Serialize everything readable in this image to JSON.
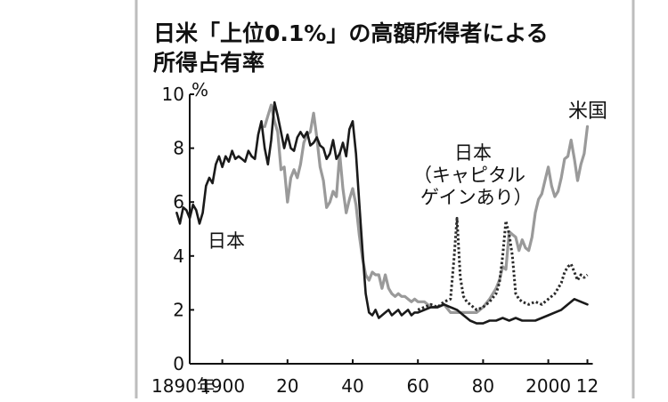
{
  "chart_data": {
    "type": "line",
    "title_line1": "日米「上位0.1%」の高額所得者による",
    "title_line2": "所得占有率",
    "y_unit": "%",
    "ylim": [
      0,
      10
    ],
    "xlim": [
      1890,
      2012
    ],
    "y_ticks": [
      {
        "value": 0,
        "label": "0"
      },
      {
        "value": 2,
        "label": "2"
      },
      {
        "value": 4,
        "label": "4"
      },
      {
        "value": 6,
        "label": "6"
      },
      {
        "value": 8,
        "label": "8"
      },
      {
        "value": 10,
        "label": "10"
      }
    ],
    "x_ticks": [
      {
        "value": 1890,
        "label": "1890年"
      },
      {
        "value": 1900,
        "label": "1900"
      },
      {
        "value": 1920,
        "label": "20"
      },
      {
        "value": 1940,
        "label": "40"
      },
      {
        "value": 1960,
        "label": "60"
      },
      {
        "value": 1980,
        "label": "80"
      },
      {
        "value": 2000,
        "label": "2000"
      },
      {
        "value": 2012,
        "label": "12"
      }
    ],
    "annotations": {
      "japan": "日本",
      "japan_cg_line1": "日本",
      "japan_cg_line2": "（キャピタル",
      "japan_cg_line3": "ゲインあり）",
      "us": "米国"
    },
    "series": [
      {
        "key": "japan",
        "color": "#1a1a1a",
        "style": "solid",
        "x": [
          1886,
          1887,
          1888,
          1889,
          1890,
          1891,
          1892,
          1893,
          1894,
          1895,
          1896,
          1897,
          1898,
          1899,
          1900,
          1901,
          1902,
          1903,
          1904,
          1905,
          1906,
          1907,
          1908,
          1909,
          1910,
          1911,
          1912,
          1913,
          1914,
          1915,
          1916,
          1917,
          1918,
          1919,
          1920,
          1921,
          1922,
          1923,
          1924,
          1925,
          1926,
          1927,
          1928,
          1929,
          1930,
          1931,
          1932,
          1933,
          1934,
          1935,
          1936,
          1937,
          1938,
          1939,
          1940,
          1941,
          1942,
          1943,
          1944,
          1945,
          1946,
          1947,
          1948,
          1949,
          1950,
          1951,
          1952,
          1953,
          1954,
          1955,
          1956,
          1957,
          1958,
          1959,
          1960,
          1962,
          1964,
          1966,
          1968,
          1970,
          1972,
          1974,
          1976,
          1978,
          1980,
          1982,
          1984,
          1986,
          1988,
          1990,
          1992,
          1994,
          1996,
          1998,
          2000,
          2002,
          2004,
          2006,
          2008,
          2010,
          2012
        ],
        "y": [
          5.6,
          5.2,
          5.8,
          5.7,
          5.4,
          5.9,
          5.7,
          5.2,
          5.6,
          6.6,
          6.9,
          6.7,
          7.4,
          7.7,
          7.3,
          7.7,
          7.5,
          7.9,
          7.6,
          7.7,
          7.6,
          7.5,
          7.9,
          7.7,
          7.6,
          8.5,
          9.0,
          8.0,
          7.4,
          8.3,
          9.7,
          9.2,
          8.6,
          8.0,
          8.5,
          8.0,
          7.9,
          8.4,
          8.6,
          8.4,
          8.6,
          8.1,
          8.2,
          8.4,
          8.1,
          8.0,
          7.6,
          7.8,
          8.3,
          7.6,
          7.8,
          8.2,
          7.7,
          8.7,
          9.0,
          7.8,
          6.0,
          4.2,
          2.6,
          1.9,
          1.8,
          2.0,
          1.7,
          1.8,
          1.9,
          2.0,
          1.8,
          1.9,
          2.0,
          1.8,
          1.9,
          2.0,
          1.8,
          1.9,
          1.9,
          2.0,
          2.1,
          2.1,
          2.2,
          2.1,
          2.0,
          1.8,
          1.6,
          1.5,
          1.5,
          1.6,
          1.6,
          1.7,
          1.6,
          1.7,
          1.6,
          1.6,
          1.6,
          1.7,
          1.8,
          1.9,
          2.0,
          2.2,
          2.4,
          2.3,
          2.2
        ]
      },
      {
        "key": "us",
        "color": "#9a9a9a",
        "style": "solid",
        "x": [
          1913,
          1914,
          1915,
          1916,
          1917,
          1918,
          1919,
          1920,
          1921,
          1922,
          1923,
          1924,
          1925,
          1926,
          1927,
          1928,
          1929,
          1930,
          1931,
          1932,
          1933,
          1934,
          1935,
          1936,
          1937,
          1938,
          1939,
          1940,
          1941,
          1942,
          1943,
          1944,
          1945,
          1946,
          1947,
          1948,
          1949,
          1950,
          1951,
          1952,
          1953,
          1954,
          1955,
          1956,
          1957,
          1958,
          1959,
          1960,
          1962,
          1964,
          1966,
          1968,
          1970,
          1972,
          1974,
          1976,
          1978,
          1980,
          1982,
          1984,
          1985,
          1986,
          1987,
          1988,
          1989,
          1990,
          1991,
          1992,
          1993,
          1994,
          1995,
          1996,
          1997,
          1998,
          1999,
          2000,
          2001,
          2002,
          2003,
          2004,
          2005,
          2006,
          2007,
          2008,
          2009,
          2010,
          2011,
          2012
        ],
        "y": [
          8.8,
          9.2,
          9.6,
          9.0,
          8.6,
          7.2,
          7.3,
          6.0,
          6.9,
          7.2,
          6.9,
          7.4,
          8.2,
          8.5,
          8.6,
          9.3,
          8.4,
          7.3,
          6.8,
          5.8,
          6.0,
          6.4,
          6.2,
          7.8,
          6.5,
          5.6,
          6.1,
          6.5,
          5.9,
          4.8,
          3.9,
          3.3,
          3.1,
          3.4,
          3.3,
          3.3,
          2.8,
          3.3,
          2.8,
          2.6,
          2.5,
          2.6,
          2.5,
          2.5,
          2.4,
          2.3,
          2.4,
          2.3,
          2.3,
          2.1,
          2.1,
          2.2,
          1.9,
          1.9,
          1.9,
          1.9,
          1.9,
          2.1,
          2.4,
          2.8,
          3.1,
          3.6,
          3.5,
          4.9,
          4.8,
          4.7,
          4.2,
          4.6,
          4.3,
          4.2,
          4.7,
          5.6,
          6.1,
          6.3,
          6.8,
          7.3,
          6.6,
          6.2,
          6.4,
          6.9,
          7.6,
          7.7,
          8.3,
          7.6,
          6.8,
          7.4,
          7.8,
          8.8
        ]
      },
      {
        "key": "japan_cg",
        "color": "#2a2a2a",
        "style": "dotted",
        "x": [
          1960,
          1962,
          1964,
          1966,
          1968,
          1970,
          1971,
          1972,
          1973,
          1974,
          1975,
          1976,
          1978,
          1980,
          1982,
          1984,
          1985,
          1986,
          1987,
          1988,
          1989,
          1990,
          1991,
          1992,
          1994,
          1996,
          1998,
          2000,
          2002,
          2004,
          2005,
          2006,
          2007,
          2008,
          2009,
          2010,
          2011,
          2012
        ],
        "y": [
          2.0,
          2.1,
          2.2,
          2.1,
          2.3,
          2.4,
          3.8,
          5.4,
          3.2,
          2.5,
          2.3,
          2.2,
          2.0,
          2.1,
          2.3,
          2.6,
          3.0,
          4.0,
          5.3,
          4.8,
          4.0,
          2.6,
          2.4,
          2.3,
          2.2,
          2.3,
          2.2,
          2.4,
          2.6,
          3.0,
          3.4,
          3.6,
          3.7,
          3.4,
          3.1,
          3.3,
          3.2,
          3.3
        ]
      }
    ]
  }
}
